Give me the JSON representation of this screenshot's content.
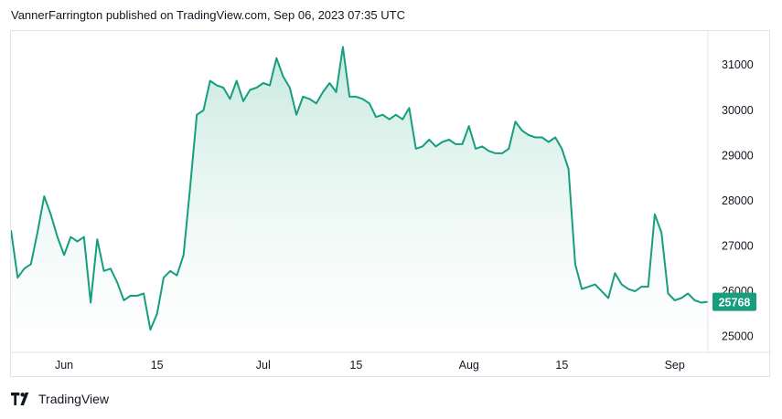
{
  "header": {
    "text": "VannerFarrington published on TradingView.com, Sep 06, 2023 07:35 UTC"
  },
  "footer": {
    "brand": "TradingView",
    "logo_icon": "tradingview-logo-icon"
  },
  "colors": {
    "line": "#179e7f",
    "fill_top": "#c4e8dd",
    "fill_bottom": "#ffffff",
    "last_price_bg": "#179e7f",
    "grid": "#e0e3eb"
  },
  "chart_data": {
    "type": "area",
    "title": "",
    "xlabel": "",
    "ylabel": "",
    "ylim": [
      24650,
      31750
    ],
    "y_axis_position": "right",
    "grid": false,
    "y_ticks": [
      25000,
      26000,
      27000,
      28000,
      29000,
      30000,
      31000
    ],
    "x_ticks": [
      {
        "label": "Jun",
        "x": "2023-06-01"
      },
      {
        "label": "15",
        "x": "2023-06-15"
      },
      {
        "label": "Jul",
        "x": "2023-07-01"
      },
      {
        "label": "15",
        "x": "2023-07-15"
      },
      {
        "label": "Aug",
        "x": "2023-08-01"
      },
      {
        "label": "15",
        "x": "2023-08-15"
      },
      {
        "label": "Sep",
        "x": "2023-09-01"
      }
    ],
    "x_range": [
      "2023-05-24",
      "2023-09-06"
    ],
    "last_price": 25768,
    "series": [
      {
        "points": [
          [
            "2023-05-24",
            27350
          ],
          [
            "2023-05-25",
            26300
          ],
          [
            "2023-05-26",
            26500
          ],
          [
            "2023-05-27",
            26600
          ],
          [
            "2023-05-28",
            27300
          ],
          [
            "2023-05-29",
            28100
          ],
          [
            "2023-05-30",
            27700
          ],
          [
            "2023-05-31",
            27200
          ],
          [
            "2023-06-01",
            26800
          ],
          [
            "2023-06-02",
            27200
          ],
          [
            "2023-06-03",
            27100
          ],
          [
            "2023-06-04",
            27200
          ],
          [
            "2023-06-05",
            25750
          ],
          [
            "2023-06-06",
            27150
          ],
          [
            "2023-06-07",
            26450
          ],
          [
            "2023-06-08",
            26500
          ],
          [
            "2023-06-09",
            26200
          ],
          [
            "2023-06-10",
            25800
          ],
          [
            "2023-06-11",
            25900
          ],
          [
            "2023-06-12",
            25900
          ],
          [
            "2023-06-13",
            25950
          ],
          [
            "2023-06-14",
            25150
          ],
          [
            "2023-06-15",
            25500
          ],
          [
            "2023-06-16",
            26300
          ],
          [
            "2023-06-17",
            26450
          ],
          [
            "2023-06-18",
            26350
          ],
          [
            "2023-06-19",
            26800
          ],
          [
            "2023-06-20",
            28300
          ],
          [
            "2023-06-21",
            29900
          ],
          [
            "2023-06-22",
            30000
          ],
          [
            "2023-06-23",
            30650
          ],
          [
            "2023-06-24",
            30550
          ],
          [
            "2023-06-25",
            30500
          ],
          [
            "2023-06-26",
            30250
          ],
          [
            "2023-06-27",
            30650
          ],
          [
            "2023-06-28",
            30200
          ],
          [
            "2023-06-29",
            30450
          ],
          [
            "2023-06-30",
            30500
          ],
          [
            "2023-07-01",
            30600
          ],
          [
            "2023-07-02",
            30550
          ],
          [
            "2023-07-03",
            31150
          ],
          [
            "2023-07-04",
            30750
          ],
          [
            "2023-07-05",
            30500
          ],
          [
            "2023-07-06",
            29900
          ],
          [
            "2023-07-07",
            30300
          ],
          [
            "2023-07-08",
            30250
          ],
          [
            "2023-07-09",
            30150
          ],
          [
            "2023-07-10",
            30400
          ],
          [
            "2023-07-11",
            30600
          ],
          [
            "2023-07-12",
            30400
          ],
          [
            "2023-07-13",
            31400
          ],
          [
            "2023-07-14",
            30300
          ],
          [
            "2023-07-15",
            30300
          ],
          [
            "2023-07-16",
            30250
          ],
          [
            "2023-07-17",
            30150
          ],
          [
            "2023-07-18",
            29850
          ],
          [
            "2023-07-19",
            29900
          ],
          [
            "2023-07-20",
            29800
          ],
          [
            "2023-07-21",
            29900
          ],
          [
            "2023-07-22",
            29800
          ],
          [
            "2023-07-23",
            30050
          ],
          [
            "2023-07-24",
            29150
          ],
          [
            "2023-07-25",
            29200
          ],
          [
            "2023-07-26",
            29350
          ],
          [
            "2023-07-27",
            29200
          ],
          [
            "2023-07-28",
            29300
          ],
          [
            "2023-07-29",
            29350
          ],
          [
            "2023-07-30",
            29250
          ],
          [
            "2023-07-31",
            29250
          ],
          [
            "2023-08-01",
            29650
          ],
          [
            "2023-08-02",
            29150
          ],
          [
            "2023-08-03",
            29200
          ],
          [
            "2023-08-04",
            29100
          ],
          [
            "2023-08-05",
            29050
          ],
          [
            "2023-08-06",
            29050
          ],
          [
            "2023-08-07",
            29150
          ],
          [
            "2023-08-08",
            29750
          ],
          [
            "2023-08-09",
            29550
          ],
          [
            "2023-08-10",
            29450
          ],
          [
            "2023-08-11",
            29400
          ],
          [
            "2023-08-12",
            29400
          ],
          [
            "2023-08-13",
            29300
          ],
          [
            "2023-08-14",
            29400
          ],
          [
            "2023-08-15",
            29150
          ],
          [
            "2023-08-16",
            28700
          ],
          [
            "2023-08-17",
            26600
          ],
          [
            "2023-08-18",
            26050
          ],
          [
            "2023-08-19",
            26100
          ],
          [
            "2023-08-20",
            26150
          ],
          [
            "2023-08-21",
            26000
          ],
          [
            "2023-08-22",
            25850
          ],
          [
            "2023-08-23",
            26400
          ],
          [
            "2023-08-24",
            26150
          ],
          [
            "2023-08-25",
            26050
          ],
          [
            "2023-08-26",
            26000
          ],
          [
            "2023-08-27",
            26100
          ],
          [
            "2023-08-28",
            26100
          ],
          [
            "2023-08-29",
            27700
          ],
          [
            "2023-08-30",
            27300
          ],
          [
            "2023-08-31",
            25950
          ],
          [
            "2023-09-01",
            25800
          ],
          [
            "2023-09-02",
            25850
          ],
          [
            "2023-09-03",
            25950
          ],
          [
            "2023-09-04",
            25800
          ],
          [
            "2023-09-05",
            25750
          ],
          [
            "2023-09-06",
            25768
          ]
        ]
      }
    ]
  }
}
